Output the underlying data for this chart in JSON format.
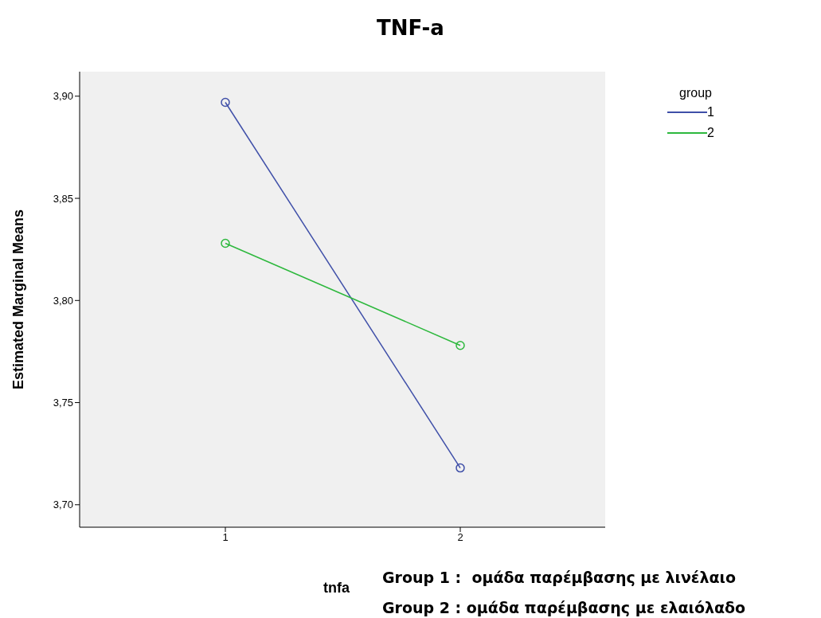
{
  "chart_data": {
    "type": "line",
    "title": "TNF-a",
    "xlabel": "tnfa",
    "ylabel": "Estimated Marginal Means",
    "legend_title": "group",
    "categories": [
      "1",
      "2"
    ],
    "series": [
      {
        "name": "1",
        "color": "#3f4fa8",
        "values": [
          3.897,
          3.718
        ]
      },
      {
        "name": "2",
        "color": "#2db83d",
        "values": [
          3.828,
          3.778
        ]
      }
    ],
    "ylim": [
      3.689,
      3.912
    ],
    "yticks": [
      {
        "value": 3.7,
        "label": "3,70"
      },
      {
        "value": 3.75,
        "label": "3,75"
      },
      {
        "value": 3.8,
        "label": "3,80"
      },
      {
        "value": 3.85,
        "label": "3,85"
      },
      {
        "value": 3.9,
        "label": "3,90"
      }
    ],
    "annotations": [
      "Group 1 :  ομάδα παρέμβασης με λινέλαιο",
      "Group 2 : ομάδα παρέμβασης με ελαιόλαδο"
    ],
    "marker": "circle",
    "grid": false,
    "legend": "top right"
  }
}
